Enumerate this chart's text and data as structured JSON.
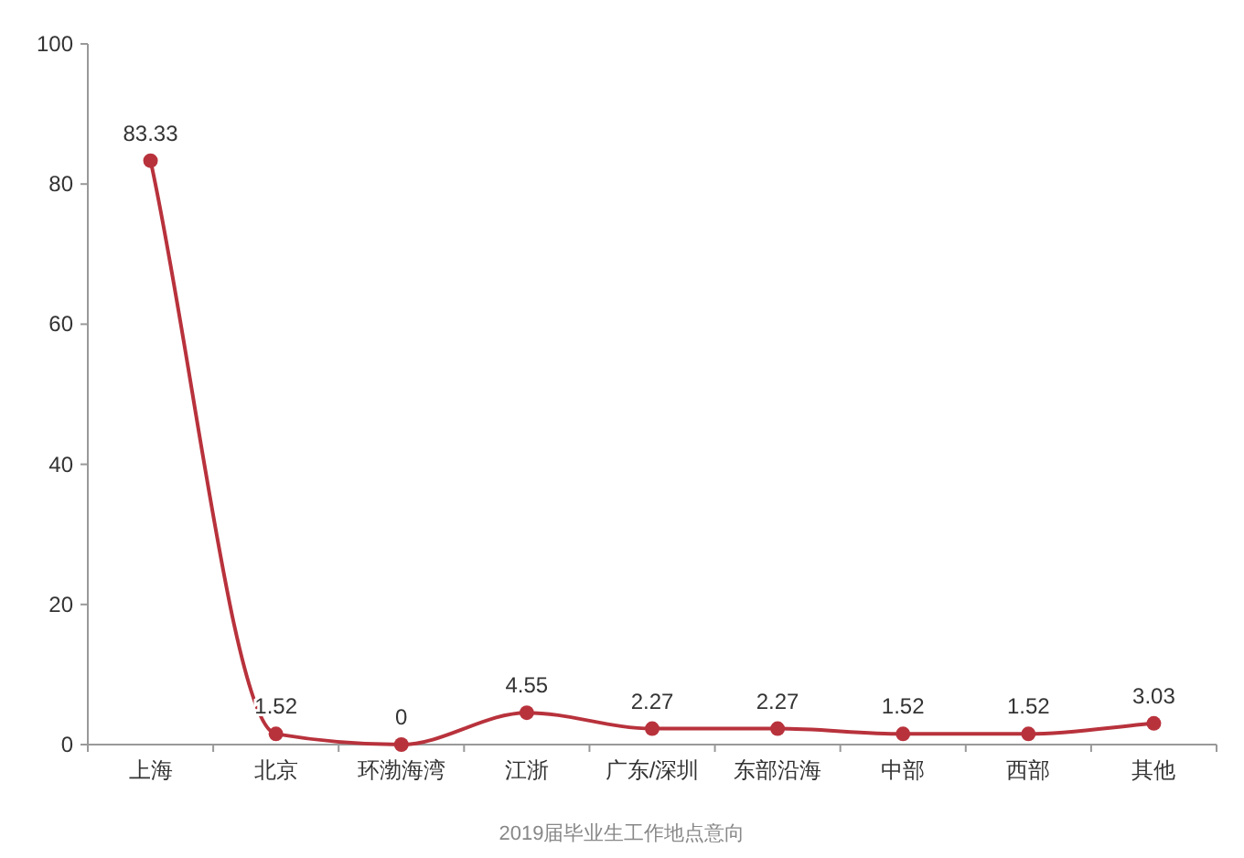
{
  "chart_data": {
    "type": "line",
    "categories": [
      "上海",
      "北京",
      "环渤海湾",
      "江浙",
      "广东/深圳",
      "东部沿海",
      "中部",
      "西部",
      "其他"
    ],
    "series": [
      {
        "color": "#b8323c",
        "values": [
          83.33,
          1.52,
          0,
          4.55,
          2.27,
          2.27,
          1.52,
          1.52,
          3.03
        ]
      }
    ],
    "ylim": [
      0,
      100
    ],
    "yticks": [
      0,
      20,
      40,
      60,
      80,
      100
    ],
    "data_labels": true,
    "marker": "circle",
    "line_style": "solid",
    "annotations": [
      "2019届毕业生工作地点意向"
    ]
  }
}
